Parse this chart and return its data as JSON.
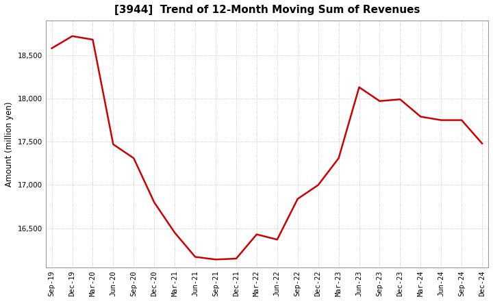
{
  "title": "[3944]  Trend of 12-Month Moving Sum of Revenues",
  "ylabel": "Amount (million yen)",
  "line_color": "#cc0000",
  "background_color": "#ffffff",
  "plot_bg_color": "#ffffff",
  "x_labels": [
    "Sep-19",
    "Dec-19",
    "Mar-20",
    "Jun-20",
    "Sep-20",
    "Dec-20",
    "Mar-21",
    "Jun-21",
    "Sep-21",
    "Dec-21",
    "Mar-22",
    "Jun-22",
    "Sep-22",
    "Dec-22",
    "Mar-23",
    "Jun-23",
    "Sep-23",
    "Dec-23",
    "Mar-24",
    "Jun-24",
    "Sep-24",
    "Dec-24"
  ],
  "values": [
    18580,
    18720,
    18680,
    17470,
    17310,
    16800,
    16450,
    16170,
    16140,
    16150,
    16430,
    16370,
    16840,
    17000,
    17310,
    18130,
    17970,
    17990,
    17790,
    17750,
    17750,
    17480
  ],
  "ylim_min": 16050,
  "ylim_max": 18900,
  "yticks": [
    16500,
    17000,
    17500,
    18000,
    18500
  ],
  "grid_color": "#bbbbbb",
  "line_width": 1.8,
  "title_fontsize": 11,
  "tick_fontsize": 7.5,
  "ylabel_fontsize": 8.5
}
